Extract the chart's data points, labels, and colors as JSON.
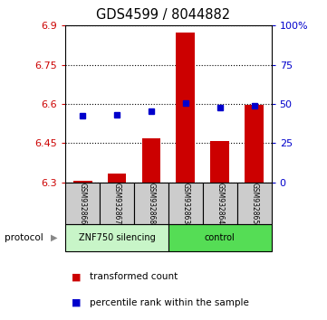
{
  "title": "GDS4599 / 8044882",
  "samples": [
    "GSM932866",
    "GSM932867",
    "GSM932868",
    "GSM932863",
    "GSM932864",
    "GSM932865"
  ],
  "bar_values": [
    6.305,
    6.335,
    6.47,
    6.875,
    6.46,
    6.595
  ],
  "bar_bottom": 6.3,
  "percentile_values": [
    6.555,
    6.558,
    6.572,
    6.605,
    6.585,
    6.592
  ],
  "left_ylim": [
    6.3,
    6.9
  ],
  "left_yticks": [
    6.3,
    6.45,
    6.6,
    6.75,
    6.9
  ],
  "left_yticklabels": [
    "6.3",
    "6.45",
    "6.6",
    "6.75",
    "6.9"
  ],
  "right_ylim": [
    0,
    100
  ],
  "right_yticks": [
    0,
    25,
    50,
    75,
    100
  ],
  "right_yticklabels": [
    "0",
    "25",
    "50",
    "75",
    "100%"
  ],
  "bar_color": "#CC0000",
  "marker_color": "#0000CC",
  "bar_width": 0.55,
  "group1_label": "ZNF750 silencing",
  "group2_label": "control",
  "group1_bg": "#c8f5c8",
  "group2_bg": "#55dd55",
  "protocol_label": "protocol",
  "legend_bar_label": "transformed count",
  "legend_marker_label": "percentile rank within the sample"
}
